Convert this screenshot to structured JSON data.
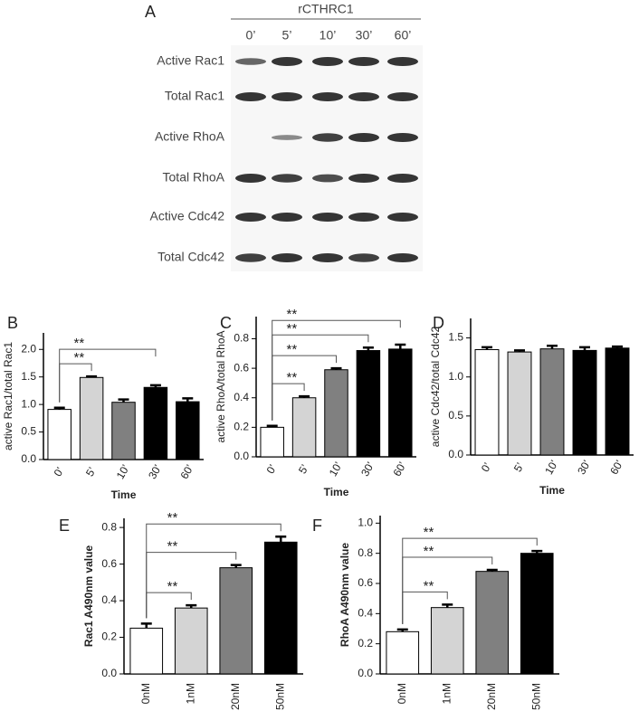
{
  "blot": {
    "panel": "A",
    "header": "rCTHRC1",
    "times": [
      "0’",
      "5’",
      "10’",
      "30’",
      "60’"
    ],
    "rows": [
      "Active Rac1",
      "Total Rac1",
      "Active RhoA",
      "Total RhoA",
      "Active Cdc42",
      "Total Cdc42"
    ]
  },
  "chart_data": [
    {
      "type": "bar",
      "panel": "B",
      "x_label": "Time",
      "y_label": "active Rac1/total Rac1",
      "categories": [
        "0’",
        "5’",
        "10’",
        "30’",
        "60’"
      ],
      "values": [
        0.91,
        1.49,
        1.04,
        1.31,
        1.05
      ],
      "errors": [
        0.03,
        0.02,
        0.05,
        0.04,
        0.06
      ],
      "colors": [
        "#ffffff",
        "#d4d4d4",
        "#808080",
        "#000000",
        "#000000"
      ],
      "ylim": [
        0,
        2.3
      ],
      "yticks": [
        {
          "value": 0,
          "label": "0.0"
        },
        0.5,
        {
          "value": 1,
          "label": "1.0"
        },
        1.5,
        {
          "value": 2,
          "label": "2.0"
        }
      ],
      "annotations": [
        {
          "text": "**",
          "between": [
            0,
            1
          ]
        },
        {
          "text": "**",
          "between": [
            0,
            3
          ]
        }
      ]
    },
    {
      "type": "bar",
      "panel": "C",
      "x_label": "Time",
      "y_label": "active RhoA/total RhoA",
      "categories": [
        "0’",
        "5’",
        "10’",
        "30’",
        "60’"
      ],
      "values": [
        0.2,
        0.4,
        0.59,
        0.72,
        0.73
      ],
      "errors": [
        0.01,
        0.01,
        0.01,
        0.02,
        0.03
      ],
      "colors": [
        "#ffffff",
        "#d4d4d4",
        "#808080",
        "#000000",
        "#000000"
      ],
      "ylim": [
        0,
        0.95
      ],
      "yticks": [
        {
          "value": 0,
          "label": "0.0"
        },
        0.2,
        0.4,
        0.6,
        0.8
      ],
      "annotations": [
        {
          "text": "**",
          "between": [
            0,
            1
          ]
        },
        {
          "text": "**",
          "between": [
            0,
            2
          ]
        },
        {
          "text": "**",
          "between": [
            0,
            3
          ]
        },
        {
          "text": "**",
          "between": [
            0,
            4
          ]
        }
      ]
    },
    {
      "type": "bar",
      "panel": "D",
      "x_label": "Time",
      "y_label": "active Cdc42/total Cdc42",
      "categories": [
        "0’",
        "5’",
        "10’",
        "30’",
        "60’"
      ],
      "values": [
        1.35,
        1.32,
        1.36,
        1.34,
        1.37
      ],
      "errors": [
        0.03,
        0.02,
        0.04,
        0.04,
        0.02
      ],
      "colors": [
        "#ffffff",
        "#d4d4d4",
        "#808080",
        "#000000",
        "#000000"
      ],
      "ylim": [
        0,
        1.75
      ],
      "yticks": [
        {
          "value": 0,
          "label": "0.0"
        },
        0.5,
        {
          "value": 1,
          "label": "1.0"
        },
        1.5
      ],
      "annotations": []
    },
    {
      "type": "bar",
      "panel": "E",
      "y_label": "Rac1 A490nm value",
      "categories": [
        "0nM",
        "1nM",
        "20nM",
        "50nM"
      ],
      "values": [
        0.25,
        0.36,
        0.58,
        0.72
      ],
      "errors": [
        0.025,
        0.015,
        0.015,
        0.03
      ],
      "colors": [
        "#ffffff",
        "#d4d4d4",
        "#808080",
        "#000000"
      ],
      "ylim": [
        0,
        0.85
      ],
      "yticks": [
        {
          "value": 0,
          "label": "0.0"
        },
        0.2,
        0.4,
        0.6,
        0.8
      ],
      "annotations": [
        {
          "text": "**",
          "between": [
            0,
            1
          ]
        },
        {
          "text": "**",
          "between": [
            0,
            2
          ]
        },
        {
          "text": "**",
          "between": [
            0,
            3
          ]
        }
      ]
    },
    {
      "type": "bar",
      "panel": "F",
      "y_label": "RhoA  A490nm value",
      "categories": [
        "0nM",
        "1nM",
        "20nM",
        "50nM"
      ],
      "values": [
        0.28,
        0.44,
        0.68,
        0.8
      ],
      "errors": [
        0.015,
        0.02,
        0.01,
        0.015
      ],
      "colors": [
        "#ffffff",
        "#d4d4d4",
        "#808080",
        "#000000"
      ],
      "ylim": [
        0,
        1.05
      ],
      "yticks": [
        {
          "value": 0,
          "label": "0.0"
        },
        0.2,
        0.4,
        0.6,
        0.8,
        {
          "value": 1,
          "label": "1.0"
        }
      ],
      "annotations": [
        {
          "text": "**",
          "between": [
            0,
            1
          ]
        },
        {
          "text": "**",
          "between": [
            0,
            2
          ]
        },
        {
          "text": "**",
          "between": [
            0,
            3
          ]
        }
      ]
    }
  ]
}
